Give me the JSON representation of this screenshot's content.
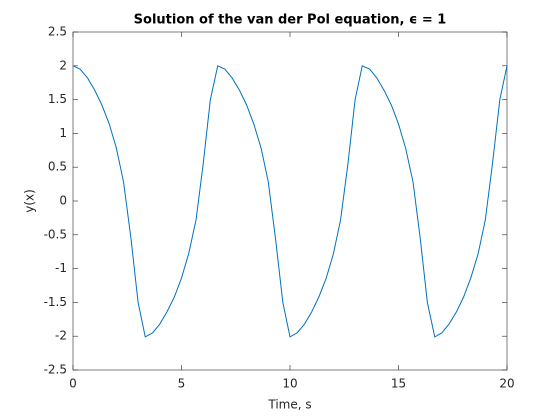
{
  "chart_data": {
    "type": "line",
    "title": "Solution of the van der Pol equation, ϵ = 1",
    "x_label": "Time, s",
    "y_label": "y(x)",
    "x": [
      0,
      0.33,
      0.67,
      1,
      1.33,
      1.67,
      2,
      2.33,
      2.67,
      3,
      3.33,
      3.67,
      4,
      4.33,
      4.67,
      5,
      5.33,
      5.67,
      6,
      6.33,
      6.67,
      7,
      7.33,
      7.67,
      8,
      8.33,
      8.67,
      9,
      9.33,
      9.67,
      10,
      10.33,
      10.67,
      11,
      11.33,
      11.67,
      12,
      12.33,
      12.67,
      13,
      13.33,
      13.67,
      14,
      14.33,
      14.67,
      15,
      15.33,
      15.67,
      16,
      16.33,
      16.67,
      17,
      17.33,
      17.67,
      18,
      18.33,
      18.67,
      19,
      19.33,
      19.67,
      20
    ],
    "series": [
      {
        "color": "#0072bd",
        "values": [
          2.0,
          1.95,
          1.82,
          1.64,
          1.42,
          1.14,
          0.78,
          0.28,
          -0.55,
          -1.5,
          -2.01,
          -1.95,
          -1.82,
          -1.64,
          -1.42,
          -1.14,
          -0.78,
          -0.28,
          0.55,
          1.5,
          2.0,
          1.95,
          1.82,
          1.64,
          1.42,
          1.14,
          0.78,
          0.28,
          -0.55,
          -1.5,
          -2.01,
          -1.95,
          -1.82,
          -1.64,
          -1.42,
          -1.14,
          -0.78,
          -0.28,
          0.55,
          1.5,
          2.0,
          1.95,
          1.82,
          1.64,
          1.42,
          1.14,
          0.78,
          0.28,
          -0.55,
          -1.5,
          -2.01,
          -1.95,
          -1.82,
          -1.64,
          -1.42,
          -1.14,
          -0.78,
          -0.28,
          0.55,
          1.5,
          2.0
        ]
      }
    ],
    "xlim": [
      0,
      20
    ],
    "xticks": [
      0,
      5,
      10,
      15,
      20
    ],
    "ylim": [
      -2.5,
      2.5
    ],
    "yticks": [
      -2.5,
      -2,
      -1.5,
      -1,
      -0.5,
      0,
      0.5,
      1,
      1.5,
      2,
      2.5
    ],
    "grid": false
  }
}
